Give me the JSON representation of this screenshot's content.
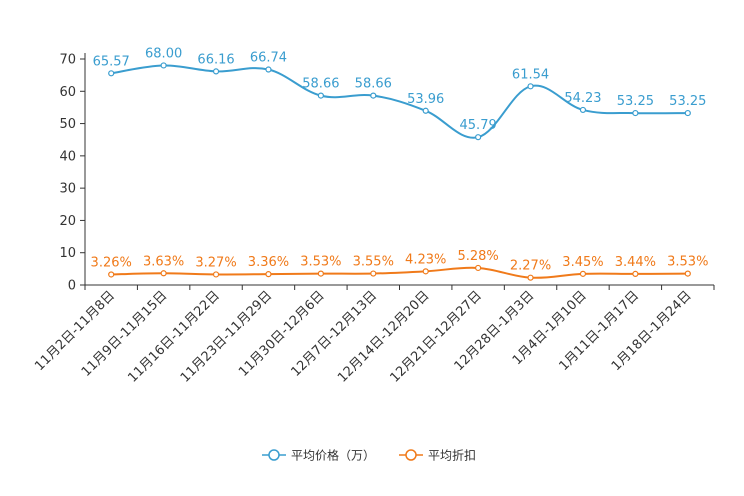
{
  "chart_data": {
    "type": "line",
    "title": "",
    "xlabel": "",
    "ylabel": "",
    "ylim": [
      0,
      70
    ],
    "yticks": [
      "0",
      "10",
      "20",
      "30",
      "40",
      "50",
      "60",
      "70"
    ],
    "categories": [
      "11月2日-11月8日",
      "11月9日-11月15日",
      "11月16日-11月22日",
      "11月23日-11月29日",
      "11月30日-12月6日",
      "12月7日-12月13日",
      "12月14日-12月20日",
      "12月21日-12月27日",
      "12月28日-1月3日",
      "1月4日-1月10日",
      "1月11日-1月17日",
      "1月18日-1月24日"
    ],
    "series": [
      {
        "name": "平均价格（万）",
        "color": "#3a9dcf",
        "values": [
          65.57,
          68.0,
          66.16,
          66.74,
          58.66,
          58.66,
          53.96,
          45.79,
          61.54,
          54.23,
          53.25,
          53.25
        ],
        "labels": [
          "65.57",
          "68.00",
          "66.16",
          "66.74",
          "58.66",
          "58.66",
          "53.96",
          "45.79",
          "61.54",
          "54.23",
          "53.25",
          "53.25"
        ]
      },
      {
        "name": "平均折扣",
        "color": "#f07a1a",
        "values": [
          3.26,
          3.63,
          3.27,
          3.36,
          3.53,
          3.55,
          4.23,
          5.28,
          2.27,
          3.45,
          3.44,
          3.53
        ],
        "labels": [
          "3.26%",
          "3.63%",
          "3.27%",
          "3.36%",
          "3.53%",
          "3.55%",
          "4.23%",
          "5.28%",
          "2.27%",
          "3.45%",
          "3.44%",
          "3.53%"
        ]
      }
    ],
    "grid": false,
    "legend": "bottom-center"
  }
}
